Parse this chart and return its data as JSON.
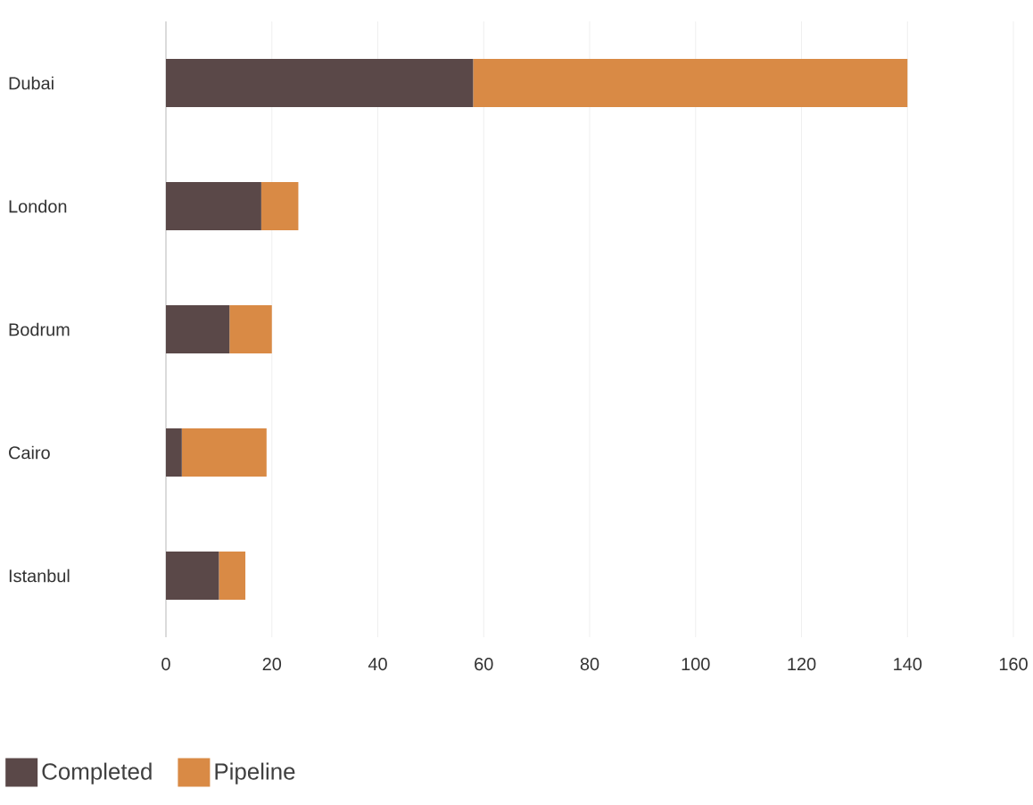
{
  "chart_data": {
    "type": "bar",
    "orientation": "horizontal",
    "stacked": true,
    "categories": [
      "Dubai",
      "London",
      "Bodrum",
      "Cairo",
      "Istanbul"
    ],
    "series": [
      {
        "name": "Completed",
        "color": "#5a4848",
        "values": [
          58,
          18,
          12,
          3,
          10
        ]
      },
      {
        "name": "Pipeline",
        "color": "#d98a45",
        "values": [
          82,
          7,
          8,
          16,
          5
        ]
      }
    ],
    "xlim": [
      0,
      160
    ],
    "xticks": [
      0,
      20,
      40,
      60,
      80,
      100,
      120,
      140,
      160
    ],
    "grid": "x",
    "legend": "bottom left"
  }
}
